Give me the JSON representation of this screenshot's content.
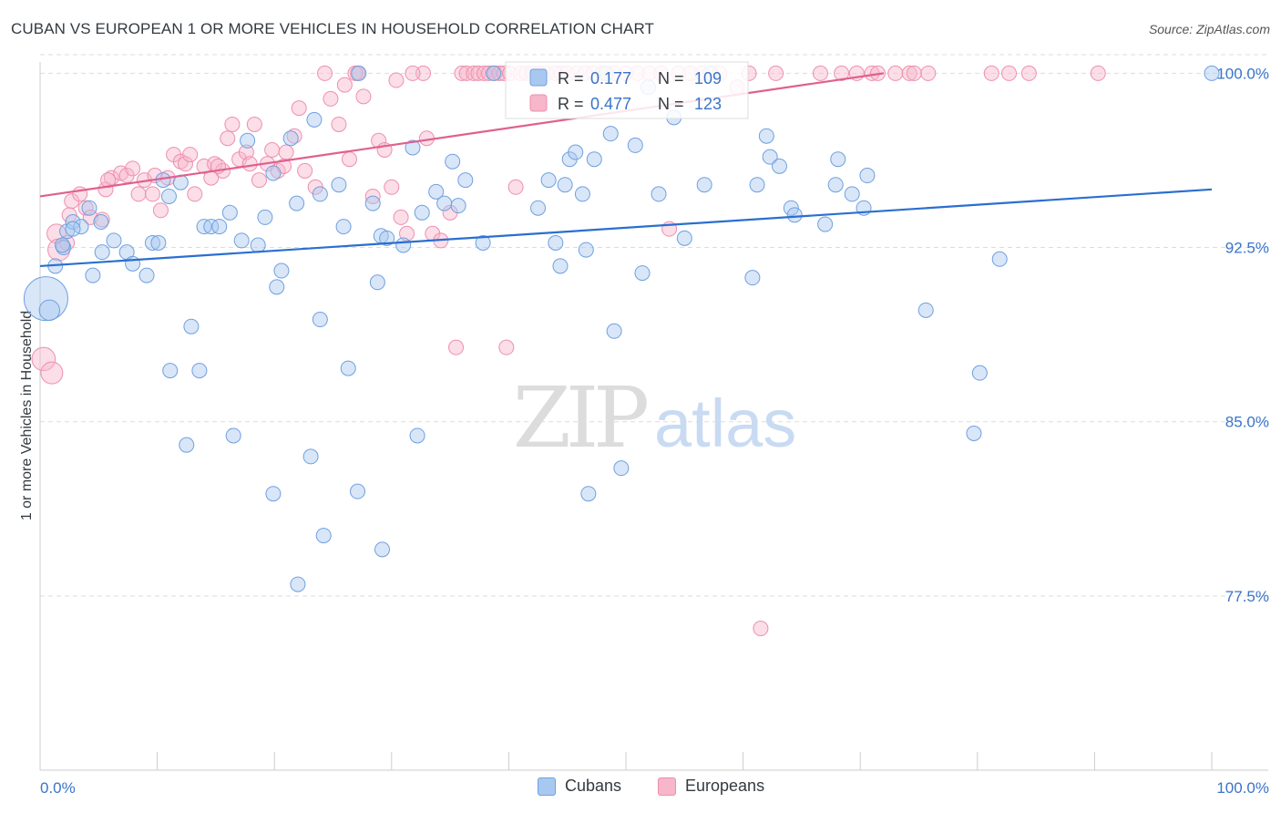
{
  "title": "CUBAN VS EUROPEAN 1 OR MORE VEHICLES IN HOUSEHOLD CORRELATION CHART",
  "source": "Source: ZipAtlas.com",
  "watermark": {
    "zip": "ZIP",
    "atlas": "atlas"
  },
  "colors": {
    "cubans_fill": "#a8c8f0",
    "cubans_stroke": "#6fa0e0",
    "cubans_line": "#2a6fcf",
    "europeans_fill": "#f7b6ca",
    "europeans_stroke": "#ee8fae",
    "europeans_line": "#e0608e",
    "tick_label": "#3a74c8",
    "grid": "#dddddd"
  },
  "legend": {
    "rows": [
      {
        "r_label": "R =",
        "r_value": "0.177",
        "n_label": "N =",
        "n_value": "109"
      },
      {
        "r_label": "R =",
        "r_value": "0.477",
        "n_label": "N =",
        "n_value": "123"
      }
    ]
  },
  "bottom_legend": [
    {
      "label": "Cubans"
    },
    {
      "label": "Europeans"
    }
  ],
  "chart_data": {
    "type": "scatter",
    "title": "CUBAN VS EUROPEAN 1 OR MORE VEHICLES IN HOUSEHOLD CORRELATION CHART",
    "xlabel": "",
    "ylabel": "1 or more Vehicles in Household",
    "xlim": [
      0,
      100
    ],
    "ylim": [
      70,
      100.8
    ],
    "x_tick_labels": [
      "0.0%",
      "100.0%"
    ],
    "y_ticks": [
      77.5,
      85.0,
      92.5,
      100.0
    ],
    "y_tick_labels": [
      "77.5%",
      "85.0%",
      "92.5%",
      "100.0%"
    ],
    "grid": true,
    "legend_position": "top-center",
    "series": [
      {
        "name": "Cubans",
        "r": 0.177,
        "n": 109,
        "trend": [
          [
            0,
            91.7
          ],
          [
            100,
            95.0
          ]
        ],
        "points": [
          [
            0.5,
            90.3,
            3
          ],
          [
            0.8,
            89.8,
            1.4
          ],
          [
            1.3,
            91.7,
            1
          ],
          [
            2.0,
            92.5,
            1
          ],
          [
            2.3,
            93.2,
            1
          ],
          [
            2.8,
            93.6,
            1
          ],
          [
            3.5,
            93.4,
            1
          ],
          [
            4.2,
            94.2,
            1
          ],
          [
            5.2,
            93.6,
            1
          ],
          [
            5.3,
            92.3,
            1
          ],
          [
            4.5,
            91.3,
            1
          ],
          [
            6.3,
            92.8,
            1
          ],
          [
            7.4,
            92.3,
            1
          ],
          [
            7.9,
            91.8,
            1
          ],
          [
            9.1,
            91.3,
            1
          ],
          [
            9.6,
            92.7,
            1
          ],
          [
            10.1,
            92.7,
            1
          ],
          [
            10.5,
            95.4,
            1
          ],
          [
            11.0,
            94.7,
            1
          ],
          [
            11.1,
            87.2,
            1
          ],
          [
            12.0,
            95.3,
            1
          ],
          [
            12.9,
            89.1,
            1
          ],
          [
            13.6,
            87.2,
            1
          ],
          [
            14.0,
            93.4,
            1
          ],
          [
            14.6,
            93.4,
            1
          ],
          [
            15.3,
            93.4,
            1
          ],
          [
            16.2,
            94.0,
            1
          ],
          [
            17.2,
            92.8,
            1
          ],
          [
            17.7,
            97.1,
            1
          ],
          [
            18.6,
            92.6,
            1
          ],
          [
            19.2,
            93.8,
            1
          ],
          [
            19.9,
            95.7,
            1
          ],
          [
            20.2,
            90.8,
            1
          ],
          [
            20.6,
            91.5,
            1
          ],
          [
            21.4,
            97.2,
            1
          ],
          [
            21.9,
            94.4,
            1
          ],
          [
            23.4,
            98.0,
            1
          ],
          [
            23.9,
            94.8,
            1
          ],
          [
            23.9,
            89.4,
            1
          ],
          [
            25.5,
            95.2,
            1
          ],
          [
            25.9,
            93.4,
            1
          ],
          [
            26.3,
            87.3,
            1
          ],
          [
            27.2,
            100.0,
            1
          ],
          [
            28.4,
            94.4,
            1
          ],
          [
            28.8,
            91.0,
            1
          ],
          [
            29.1,
            93.0,
            1
          ],
          [
            29.6,
            92.9,
            1
          ],
          [
            31.0,
            92.6,
            1
          ],
          [
            31.8,
            96.8,
            1
          ],
          [
            32.2,
            84.4,
            1
          ],
          [
            32.6,
            94.0,
            1
          ],
          [
            33.8,
            94.9,
            1
          ],
          [
            34.5,
            94.4,
            1
          ],
          [
            35.2,
            96.2,
            1
          ],
          [
            35.7,
            94.3,
            1
          ],
          [
            36.3,
            95.4,
            1
          ],
          [
            37.8,
            92.7,
            1
          ],
          [
            38.7,
            100.0,
            1
          ],
          [
            42.5,
            94.2,
            1
          ],
          [
            44.0,
            92.7,
            1
          ],
          [
            43.4,
            95.4,
            1
          ],
          [
            44.4,
            91.7,
            1
          ],
          [
            44.8,
            95.2,
            1
          ],
          [
            45.2,
            96.3,
            1
          ],
          [
            45.7,
            96.6,
            1
          ],
          [
            46.3,
            94.8,
            1
          ],
          [
            46.6,
            92.4,
            1
          ],
          [
            46.8,
            81.9,
            1
          ],
          [
            47.3,
            96.3,
            1
          ],
          [
            48.3,
            100.0,
            1
          ],
          [
            48.7,
            97.4,
            1
          ],
          [
            49.0,
            88.9,
            1
          ],
          [
            49.6,
            83.0,
            1
          ],
          [
            50.8,
            96.9,
            1
          ],
          [
            51.4,
            91.4,
            1
          ],
          [
            51.9,
            99.4,
            1
          ],
          [
            52.8,
            94.8,
            1
          ],
          [
            54.1,
            98.1,
            1
          ],
          [
            55.0,
            92.9,
            1
          ],
          [
            56.7,
            95.2,
            1
          ],
          [
            57.2,
            100.0,
            1
          ],
          [
            60.8,
            91.2,
            1
          ],
          [
            61.2,
            95.2,
            1
          ],
          [
            62.0,
            97.3,
            1
          ],
          [
            62.3,
            96.4,
            1
          ],
          [
            63.1,
            96.0,
            1
          ],
          [
            64.1,
            94.2,
            1
          ],
          [
            64.4,
            93.9,
            1
          ],
          [
            67.0,
            93.5,
            1
          ],
          [
            67.9,
            95.2,
            1
          ],
          [
            68.1,
            96.3,
            1
          ],
          [
            69.3,
            94.8,
            1
          ],
          [
            70.3,
            94.2,
            1
          ],
          [
            70.6,
            95.6,
            1
          ],
          [
            75.6,
            89.8,
            1
          ],
          [
            79.7,
            84.5,
            1
          ],
          [
            80.2,
            87.1,
            1
          ],
          [
            81.9,
            92.0,
            1
          ],
          [
            100.0,
            100.0,
            1
          ],
          [
            1.9,
            92.6,
            1
          ],
          [
            2.8,
            93.3,
            1
          ],
          [
            19.9,
            81.9,
            1
          ],
          [
            12.5,
            84.0,
            1
          ],
          [
            16.5,
            84.4,
            1
          ],
          [
            23.1,
            83.5,
            1
          ],
          [
            22.0,
            78.0,
            1
          ],
          [
            24.2,
            80.1,
            1
          ],
          [
            27.1,
            82.0,
            1
          ],
          [
            29.2,
            79.5,
            1
          ]
        ]
      },
      {
        "name": "Europeans",
        "r": 0.477,
        "n": 123,
        "trend": [
          [
            0,
            94.7
          ],
          [
            72,
            100.0
          ]
        ],
        "points": [
          [
            0.3,
            87.7,
            1.6
          ],
          [
            1.0,
            87.1,
            1.5
          ],
          [
            1.4,
            93.1,
            1.3
          ],
          [
            1.6,
            92.4,
            1.5
          ],
          [
            2.3,
            92.7,
            1
          ],
          [
            2.7,
            94.5,
            1
          ],
          [
            3.4,
            94.8,
            1
          ],
          [
            3.9,
            94.2,
            1
          ],
          [
            4.3,
            93.8,
            1
          ],
          [
            5.3,
            93.7,
            1
          ],
          [
            5.6,
            95.0,
            1
          ],
          [
            6.1,
            95.5,
            1
          ],
          [
            6.9,
            95.7,
            1
          ],
          [
            7.4,
            95.6,
            1
          ],
          [
            7.9,
            95.9,
            1
          ],
          [
            8.4,
            94.8,
            1
          ],
          [
            8.9,
            95.4,
            1
          ],
          [
            9.6,
            94.8,
            1
          ],
          [
            10.3,
            94.1,
            1
          ],
          [
            10.9,
            95.5,
            1
          ],
          [
            11.4,
            96.5,
            1
          ],
          [
            12.0,
            96.2,
            1
          ],
          [
            12.4,
            96.1,
            1
          ],
          [
            12.8,
            96.5,
            1
          ],
          [
            13.2,
            94.8,
            1
          ],
          [
            14.0,
            96.0,
            1
          ],
          [
            14.6,
            95.5,
            1
          ],
          [
            14.9,
            96.1,
            1
          ],
          [
            15.6,
            95.8,
            1
          ],
          [
            16.0,
            97.2,
            1
          ],
          [
            16.4,
            97.8,
            1
          ],
          [
            17.0,
            96.3,
            1
          ],
          [
            17.6,
            96.6,
            1
          ],
          [
            17.9,
            96.1,
            1
          ],
          [
            18.3,
            97.8,
            1
          ],
          [
            18.7,
            95.4,
            1
          ],
          [
            19.4,
            96.1,
            1
          ],
          [
            19.8,
            96.7,
            1
          ],
          [
            20.3,
            95.8,
            1
          ],
          [
            21.0,
            96.6,
            1
          ],
          [
            21.7,
            97.3,
            1
          ],
          [
            22.1,
            98.5,
            1
          ],
          [
            22.6,
            95.8,
            1
          ],
          [
            23.5,
            95.1,
            1
          ],
          [
            24.3,
            100.0,
            1
          ],
          [
            24.8,
            98.9,
            1
          ],
          [
            25.5,
            97.8,
            1
          ],
          [
            26.0,
            99.5,
            1
          ],
          [
            26.4,
            96.3,
            1
          ],
          [
            27.1,
            100.0,
            1
          ],
          [
            27.6,
            99.0,
            1
          ],
          [
            28.4,
            94.7,
            1
          ],
          [
            28.9,
            97.1,
            1
          ],
          [
            29.4,
            96.7,
            1
          ],
          [
            30.0,
            95.1,
            1
          ],
          [
            30.4,
            99.7,
            1
          ],
          [
            30.8,
            93.8,
            1
          ],
          [
            31.3,
            93.1,
            1
          ],
          [
            32.7,
            100.0,
            1
          ],
          [
            33.0,
            97.2,
            1
          ],
          [
            33.5,
            93.1,
            1
          ],
          [
            34.2,
            92.8,
            1
          ],
          [
            35.0,
            94.0,
            1
          ],
          [
            35.5,
            88.2,
            1
          ],
          [
            36.0,
            100.0,
            1
          ],
          [
            36.4,
            100.0,
            1
          ],
          [
            37.0,
            100.0,
            1
          ],
          [
            37.4,
            100.0,
            1
          ],
          [
            37.9,
            100.0,
            1
          ],
          [
            38.3,
            100.0,
            1
          ],
          [
            38.8,
            100.0,
            1
          ],
          [
            39.2,
            100.0,
            1
          ],
          [
            39.6,
            100.0,
            1
          ],
          [
            39.8,
            88.2,
            1
          ],
          [
            40.1,
            100.0,
            1
          ],
          [
            40.6,
            95.1,
            1
          ],
          [
            41.0,
            100.0,
            1
          ],
          [
            41.5,
            100.0,
            1
          ],
          [
            42.0,
            100.0,
            1
          ],
          [
            42.6,
            100.0,
            1
          ],
          [
            43.2,
            100.0,
            1
          ],
          [
            44.0,
            100.0,
            1
          ],
          [
            44.5,
            100.0,
            1
          ],
          [
            45.0,
            100.0,
            1
          ],
          [
            45.8,
            100.0,
            1
          ],
          [
            46.5,
            100.0,
            1
          ],
          [
            47.2,
            100.0,
            1
          ],
          [
            48.0,
            100.0,
            1
          ],
          [
            49.0,
            100.0,
            1
          ],
          [
            50.0,
            100.0,
            1
          ],
          [
            51.0,
            100.0,
            1
          ],
          [
            52.0,
            100.0,
            1
          ],
          [
            53.0,
            100.0,
            1
          ],
          [
            53.7,
            93.3,
            1
          ],
          [
            54.5,
            100.0,
            1
          ],
          [
            55.5,
            100.0,
            1
          ],
          [
            56.5,
            100.0,
            1
          ],
          [
            58.0,
            100.0,
            1
          ],
          [
            59.5,
            99.4,
            1
          ],
          [
            61.5,
            76.1,
            1
          ],
          [
            62.8,
            100.0,
            1
          ],
          [
            66.6,
            100.0,
            1
          ],
          [
            68.4,
            100.0,
            1
          ],
          [
            69.7,
            100.0,
            1
          ],
          [
            71.0,
            100.0,
            1
          ],
          [
            71.5,
            100.0,
            1
          ],
          [
            73.0,
            100.0,
            1
          ],
          [
            74.2,
            100.0,
            1
          ],
          [
            74.6,
            100.0,
            1
          ],
          [
            75.8,
            100.0,
            1
          ],
          [
            81.2,
            100.0,
            1
          ],
          [
            82.7,
            100.0,
            1
          ],
          [
            84.4,
            100.0,
            1
          ],
          [
            90.3,
            100.0,
            1
          ],
          [
            5.8,
            95.4,
            1
          ],
          [
            2.5,
            93.9,
            1
          ],
          [
            9.8,
            95.6,
            1
          ],
          [
            15.2,
            96.0,
            1
          ],
          [
            20.8,
            96.0,
            1
          ],
          [
            26.9,
            100.0,
            1
          ],
          [
            31.8,
            100.0,
            1
          ],
          [
            60.5,
            100.0,
            1
          ]
        ]
      }
    ]
  }
}
